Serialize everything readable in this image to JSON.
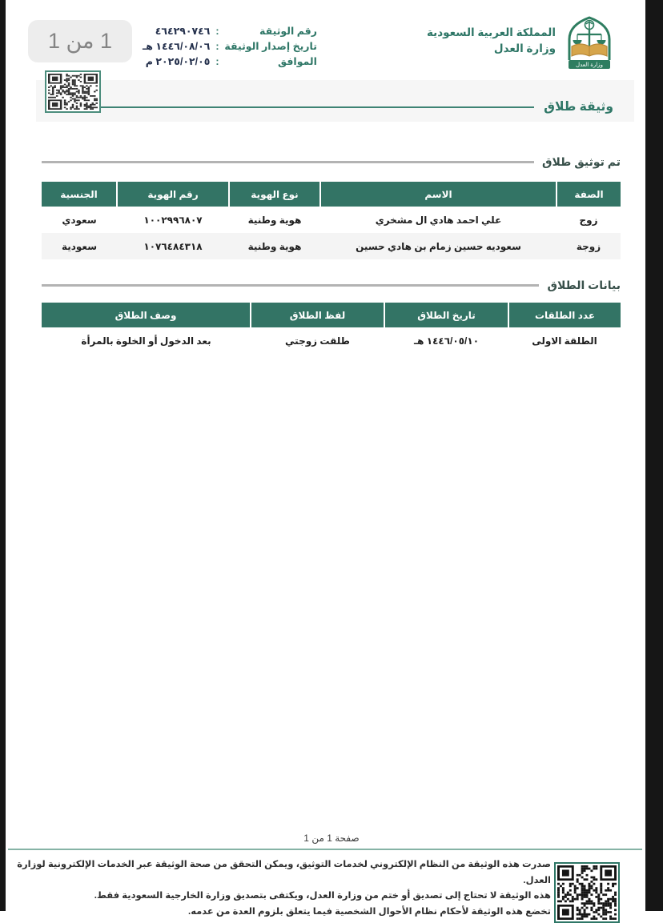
{
  "colors": {
    "brand_green": "#337465",
    "label_green": "#2f7767",
    "band_gray": "#f6f6f6",
    "alt_row_gray": "#f4f4f4",
    "rule_gray": "#b3b3b3",
    "title_rule_green": "#3e8374",
    "footer_rule_green": "#86b3a6",
    "value_navy": "#25314d",
    "viewer_edge_dark": "#161616"
  },
  "overlay": {
    "page_badge": "1 من 1"
  },
  "header": {
    "kingdom": "المملكة العربية السعودية",
    "ministry": "وزارة العدل",
    "logo_banner": "وزارة العدل",
    "colon": ":",
    "doc_info": [
      {
        "label": "رقم الوثيقة",
        "value": "٤٦٤٢٩٠٧٤٦"
      },
      {
        "label": "تاريخ إصدار الوثيقة",
        "value": "١٤٤٦/٠٨/٠٦ هـ"
      },
      {
        "label": "الموافق",
        "value": "٢٠٢٥/٠٢/٠٥ م"
      }
    ]
  },
  "title": "وثيقة طلاق",
  "sections": [
    {
      "heading": "تم توثيق طلاق",
      "columns": [
        "الصفة",
        "الاسم",
        "نوع الهوية",
        "رقم الهوية",
        "الجنسية"
      ],
      "rows": [
        [
          "زوج",
          "علي احمد هادي ال مشخري",
          "هوية وطنية",
          "١٠٠٢٩٩٦٨٠٧",
          "سعودي"
        ],
        [
          "زوجة",
          "سعوديه حسين زمام بن هادي حسين",
          "هوية وطنية",
          "١٠٧٦٤٨٤٣١٨",
          "سعودية"
        ]
      ]
    },
    {
      "heading": "بيانات الطلاق",
      "columns": [
        "عدد الطلقات",
        "تاريخ الطلاق",
        "لفظ الطلاق",
        "وصف الطلاق"
      ],
      "rows": [
        [
          "الطلقة الاولى",
          "١٤٤٦/٠٥/١٠ هـ",
          "طلقت زوجتي",
          "بعد الدخول أو الخلوة بالمرأة"
        ]
      ]
    }
  ],
  "footer": {
    "page_label": "صفحة 1 من 1",
    "notes": [
      "صدرت هذه الوثيقة من النظام الإلكتروني لخدمات التوثيق، ويمكن التحقق من صحة الوثيقة عبر الخدمات الإلكترونية لوزارة العدل.",
      "هذه الوثيقة لا تحتاج إلى تصديق أو ختم من وزارة العدل، ويكتفى بتصديق وزارة الخارجية السعودية فقط.",
      "تخضع هذه الوثيقة لأحكام نظام الأحوال الشخصية فيما يتعلق بلزوم العدة من عدمه."
    ]
  }
}
